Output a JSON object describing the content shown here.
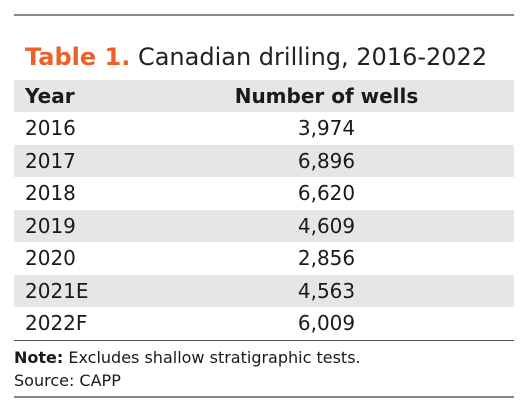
{
  "title": {
    "label": "Table 1.",
    "text": "Canadian drilling, 2016-2022"
  },
  "table": {
    "headers": [
      "Year",
      "Number of wells"
    ],
    "rows": [
      {
        "year": "2016",
        "wells": "3,974"
      },
      {
        "year": "2017",
        "wells": "6,896"
      },
      {
        "year": "2018",
        "wells": "6,620"
      },
      {
        "year": "2019",
        "wells": "4,609"
      },
      {
        "year": "2020",
        "wells": "2,856"
      },
      {
        "year": "2021E",
        "wells": "4,563"
      },
      {
        "year": "2022F",
        "wells": "6,009"
      }
    ]
  },
  "footnotes": {
    "note_label": "Note:",
    "note_text": " Excludes shallow stratigraphic tests.",
    "source": "Source: CAPP"
  },
  "colors": {
    "title_accent": "#e8622a",
    "row_shade": "#e6e6e6"
  }
}
